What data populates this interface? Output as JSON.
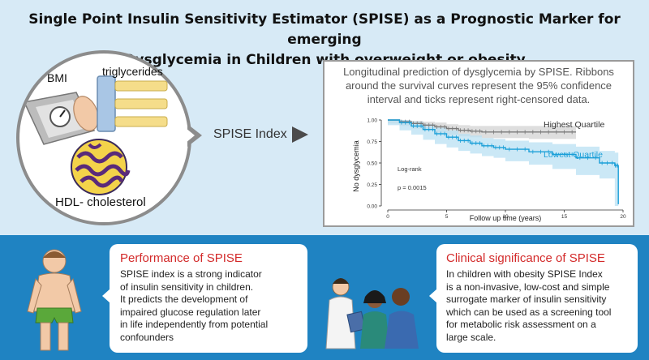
{
  "title_line1": "Single Point Insulin Sensitivity Estimator (SPISE) as a Prognostic Marker for emerging",
  "title_line2": "Dysglycemia in Children with overweight or obesity",
  "left_panel": {
    "bmi_label": "BMI",
    "triglycerides_label": "triglycerides",
    "hdl_label": "HDL- cholesterol"
  },
  "spise_index_label": "SPISE Index",
  "chart_caption": {
    "line1": "Longitudinal prediction of dysglycemia by SPISE. Ribbons",
    "line2": "around the survival curves represent the 95% confidence",
    "line3": "interval and ticks represent right-censored data."
  },
  "chart_data": {
    "type": "line",
    "title": "",
    "xlabel": "Follow up time (years)",
    "ylabel": "No dysglycemia",
    "xlim": [
      0,
      20
    ],
    "ylim": [
      0,
      1
    ],
    "x_ticks": [
      0,
      5,
      10,
      15,
      20
    ],
    "x_tick_labels": [
      "0",
      "5",
      "10",
      "15",
      "20"
    ],
    "y_ticks": [
      0,
      0.25,
      0.5,
      0.75,
      1.0
    ],
    "y_tick_labels": [
      "0.00",
      "0.25",
      "0.50",
      "0.75",
      "1.00"
    ],
    "annotation_line1": "Log-rank",
    "annotation_line2": "p = 0.0015",
    "series": [
      {
        "name": "Highest Quartile",
        "color": "#7a7a7a",
        "ribbon_color": "#d3d3d3",
        "x": [
          0,
          1,
          2,
          3,
          4,
          5,
          6,
          7,
          8,
          10,
          12,
          14,
          16
        ],
        "y": [
          1.0,
          0.98,
          0.96,
          0.94,
          0.92,
          0.9,
          0.88,
          0.87,
          0.86,
          0.86,
          0.86,
          0.86,
          0.86
        ],
        "ci_low": [
          1.0,
          0.96,
          0.93,
          0.9,
          0.88,
          0.85,
          0.83,
          0.81,
          0.8,
          0.79,
          0.79,
          0.78,
          0.78
        ],
        "ci_high": [
          1.0,
          1.0,
          0.99,
          0.98,
          0.97,
          0.95,
          0.94,
          0.93,
          0.93,
          0.93,
          0.93,
          0.93,
          0.93
        ]
      },
      {
        "name": "Lowest Quartile",
        "color": "#1b9fd8",
        "ribbon_color": "#b9e0f3",
        "x": [
          0,
          1,
          2,
          3,
          4,
          5,
          6,
          7,
          8,
          9,
          10,
          12,
          14,
          16,
          18,
          19.3,
          19.6
        ],
        "y": [
          1.0,
          0.97,
          0.93,
          0.89,
          0.84,
          0.8,
          0.76,
          0.73,
          0.7,
          0.68,
          0.66,
          0.63,
          0.6,
          0.56,
          0.5,
          0.47,
          0.02
        ],
        "ci_low": [
          1.0,
          0.94,
          0.88,
          0.83,
          0.77,
          0.72,
          0.68,
          0.64,
          0.61,
          0.58,
          0.56,
          0.52,
          0.48,
          0.43,
          0.36,
          0.32,
          0.0
        ],
        "ci_high": [
          1.0,
          1.0,
          0.98,
          0.95,
          0.91,
          0.88,
          0.84,
          0.82,
          0.79,
          0.78,
          0.76,
          0.74,
          0.72,
          0.69,
          0.64,
          0.62,
          0.1
        ]
      }
    ]
  },
  "performance": {
    "title": "Performance of SPISE",
    "lines": [
      "SPISE index is a strong indicator",
      "of insulin sensitivity in children.",
      "It predicts the development of",
      "impaired glucose regulation later",
      "in life independently from potential",
      "confounders"
    ]
  },
  "clinical": {
    "title": "Clinical significance of SPISE",
    "lines": [
      "In children with obesity SPISE Index",
      "is a non-invasive, low-cost and simple",
      "surrogate marker of insulin sensitivity",
      "which can be used as a screening tool",
      "for metabolic risk assessment on a",
      "large scale."
    ]
  }
}
